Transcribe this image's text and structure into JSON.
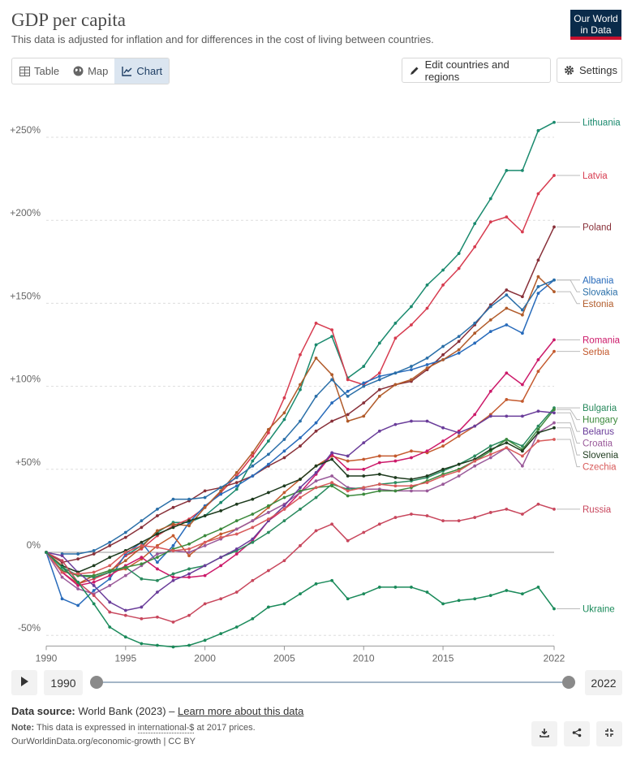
{
  "header": {
    "title": "GDP per capita",
    "subtitle": "This data is adjusted for inflation and for differences in the cost of living between countries.",
    "logo_line1": "Our World",
    "logo_line2": "in Data"
  },
  "tabs": [
    {
      "label": "Table",
      "icon": "table-icon"
    },
    {
      "label": "Map",
      "icon": "globe-icon"
    },
    {
      "label": "Chart",
      "icon": "line-chart-icon",
      "active": true
    }
  ],
  "toolbar": {
    "edit_label": "Edit countries and regions",
    "settings_label": "Settings"
  },
  "timeline": {
    "start_year": "1990",
    "end_year": "2022"
  },
  "footer": {
    "source_label": "Data source:",
    "source_text": "World Bank (2023) –",
    "source_link": "Learn more about this data",
    "note_label": "Note:",
    "note_text_1": "This data is expressed in",
    "note_link": "international-$",
    "note_text_2": "at 2017 prices.",
    "url": "OurWorldinData.org/economic-growth | CC BY"
  },
  "chart_data": {
    "type": "line",
    "ylim": [
      -55,
      278
    ],
    "xlim": [
      1990,
      2022
    ],
    "yticks": [
      {
        "value": 250,
        "label": "+250%"
      },
      {
        "value": 200,
        "label": "+200%"
      },
      {
        "value": 150,
        "label": "+150%"
      },
      {
        "value": 100,
        "label": "+100%"
      },
      {
        "value": 50,
        "label": "+50%"
      },
      {
        "value": 0,
        "label": "0%"
      },
      {
        "value": -50,
        "label": "-50%"
      }
    ],
    "xticks": [
      1990,
      1995,
      2000,
      2005,
      2010,
      2015,
      2022
    ],
    "grid": true,
    "series": [
      {
        "name": "Lithuania",
        "color": "#1a8a6e",
        "x": [
          1995,
          1996,
          1997,
          1998,
          1999,
          2000,
          2001,
          2002,
          2003,
          2004,
          2005,
          2006,
          2007,
          2008,
          2009,
          2010,
          2011,
          2012,
          2013,
          2014,
          2015,
          2016,
          2017,
          2018,
          2019,
          2020,
          2021,
          2022
        ],
        "y": [
          -2,
          4,
          12,
          18,
          18,
          22,
          30,
          38,
          55,
          67,
          80,
          98,
          125,
          130,
          105,
          112,
          126,
          138,
          148,
          161,
          170,
          180,
          198,
          213,
          230,
          230,
          254,
          259
        ]
      },
      {
        "name": "Latvia",
        "color": "#d73c50",
        "x": [
          1990,
          1991,
          1992,
          1993,
          1994,
          1995,
          1996,
          1997,
          1998,
          1999,
          2000,
          2001,
          2002,
          2003,
          2004,
          2005,
          2006,
          2007,
          2008,
          2009,
          2010,
          2011,
          2012,
          2013,
          2014,
          2015,
          2016,
          2017,
          2018,
          2019,
          2020,
          2021,
          2022
        ],
        "y": [
          0,
          -12,
          -19,
          -16,
          -12,
          -2,
          2,
          10,
          16,
          20,
          27,
          36,
          46,
          58,
          72,
          93,
          119,
          138,
          134,
          104,
          101,
          108,
          129,
          137,
          147,
          161,
          171,
          184,
          199,
          202,
          193,
          216,
          227
        ]
      },
      {
        "name": "Poland",
        "color": "#883039",
        "x": [
          1990,
          1991,
          1992,
          1993,
          1994,
          1995,
          1996,
          1997,
          1998,
          1999,
          2000,
          2001,
          2002,
          2003,
          2004,
          2005,
          2006,
          2007,
          2008,
          2009,
          2010,
          2011,
          2012,
          2013,
          2014,
          2015,
          2016,
          2017,
          2018,
          2019,
          2020,
          2021,
          2022
        ],
        "y": [
          0,
          -6,
          -4,
          -1,
          4,
          9,
          15,
          22,
          27,
          31,
          37,
          39,
          42,
          46,
          52,
          57,
          64,
          73,
          79,
          83,
          90,
          98,
          101,
          103,
          110,
          119,
          127,
          137,
          149,
          158,
          154,
          176,
          196
        ]
      },
      {
        "name": "Albania",
        "color": "#286bbb",
        "x": [
          1990,
          1991,
          1992,
          1993,
          1994,
          1995,
          1996,
          1997,
          1998,
          1999,
          2000,
          2001,
          2002,
          2003,
          2004,
          2005,
          2006,
          2007,
          2008,
          2009,
          2010,
          2011,
          2012,
          2013,
          2014,
          2015,
          2016,
          2017,
          2018,
          2019,
          2020,
          2021,
          2022
        ],
        "y": [
          0,
          -28,
          -32,
          -23,
          -16,
          -1,
          6,
          -6,
          4,
          18,
          28,
          35,
          40,
          46,
          53,
          61,
          69,
          78,
          90,
          97,
          102,
          106,
          108,
          110,
          113,
          116,
          120,
          126,
          133,
          137,
          132,
          156,
          164
        ]
      },
      {
        "name": "Estonia",
        "color": "#b15b2a",
        "x": [
          1990,
          1991,
          1992,
          1993,
          1994,
          1995,
          1996,
          1997,
          1998,
          1999,
          2000,
          2001,
          2002,
          2003,
          2004,
          2005,
          2006,
          2007,
          2008,
          2009,
          2010,
          2011,
          2012,
          2013,
          2014,
          2015,
          2016,
          2017,
          2018,
          2019,
          2020,
          2021,
          2022
        ],
        "y": [
          0,
          -8,
          -19,
          -14,
          -11,
          -5,
          3,
          13,
          17,
          16,
          27,
          37,
          48,
          60,
          74,
          84,
          101,
          117,
          107,
          79,
          82,
          94,
          101,
          104,
          111,
          116,
          122,
          132,
          140,
          147,
          143,
          166,
          157
        ]
      },
      {
        "name": "Slovakia",
        "color": "#2a6fa8",
        "x": [
          1991,
          1992,
          1993,
          1994,
          1995,
          1996,
          1997,
          1998,
          1999,
          2000,
          2001,
          2002,
          2003,
          2004,
          2005,
          2006,
          2007,
          2008,
          2009,
          2010,
          2011,
          2012,
          2013,
          2014,
          2015,
          2016,
          2017,
          2018,
          2019,
          2020,
          2021,
          2022
        ],
        "y": [
          -1,
          -1,
          1,
          6,
          12,
          19,
          26,
          32,
          32,
          33,
          39,
          45,
          52,
          59,
          68,
          79,
          94,
          104,
          94,
          100,
          104,
          108,
          112,
          117,
          124,
          130,
          138,
          148,
          155,
          146,
          160,
          164
        ]
      },
      {
        "name": "Serbia",
        "color": "#c45a2e",
        "x": [
          1994,
          1995,
          1996,
          1997,
          1998,
          1999,
          2000,
          2001,
          2002,
          2003,
          2004,
          2005,
          2006,
          2007,
          2008,
          2009,
          2010,
          2011,
          2012,
          2013,
          2014,
          2015,
          2016,
          2017,
          2018,
          2019,
          2020,
          2021,
          2022
        ],
        "y": [
          -12,
          -10,
          -4,
          4,
          10,
          -2,
          6,
          11,
          14,
          19,
          27,
          36,
          44,
          52,
          58,
          55,
          56,
          58,
          58,
          61,
          60,
          64,
          70,
          76,
          83,
          92,
          91,
          109,
          121
        ]
      },
      {
        "name": "Romania",
        "color": "#cc1a6a",
        "x": [
          1990,
          1991,
          1992,
          1993,
          1994,
          1995,
          1996,
          1997,
          1998,
          1999,
          2000,
          2001,
          2002,
          2003,
          2004,
          2005,
          2006,
          2007,
          2008,
          2009,
          2010,
          2011,
          2012,
          2013,
          2014,
          2015,
          2016,
          2017,
          2018,
          2019,
          2020,
          2021,
          2022
        ],
        "y": [
          0,
          -12,
          -20,
          -18,
          -14,
          -8,
          -3,
          -10,
          -15,
          -15,
          -14,
          -8,
          -1,
          7,
          19,
          26,
          36,
          47,
          59,
          50,
          50,
          54,
          55,
          57,
          61,
          67,
          73,
          83,
          97,
          108,
          101,
          116,
          128
        ]
      },
      {
        "name": "Croatia",
        "color": "#9a5a9a",
        "x": [
          1990,
          1991,
          1992,
          1993,
          1994,
          1995,
          1996,
          1997,
          1998,
          1999,
          2000,
          2001,
          2002,
          2003,
          2004,
          2005,
          2006,
          2007,
          2008,
          2009,
          2010,
          2011,
          2012,
          2013,
          2014,
          2015,
          2016,
          2017,
          2018,
          2019,
          2020,
          2021,
          2022
        ],
        "y": [
          0,
          -15,
          -22,
          -25,
          -20,
          -14,
          -8,
          -1,
          1,
          0,
          4,
          8,
          14,
          19,
          24,
          29,
          36,
          43,
          46,
          39,
          38,
          38,
          37,
          37,
          37,
          41,
          46,
          52,
          57,
          63,
          52,
          72,
          78
        ]
      },
      {
        "name": "Bulgaria",
        "color": "#2a8a5e",
        "x": [
          1990,
          1991,
          1992,
          1993,
          1994,
          1995,
          1996,
          1997,
          1998,
          1999,
          2000,
          2001,
          2002,
          2003,
          2004,
          2005,
          2006,
          2007,
          2008,
          2009,
          2010,
          2011,
          2012,
          2013,
          2014,
          2015,
          2016,
          2017,
          2018,
          2019,
          2020,
          2021,
          2022
        ],
        "y": [
          0,
          -9,
          -14,
          -15,
          -12,
          -9,
          -16,
          -17,
          -13,
          -10,
          -8,
          -3,
          1,
          6,
          12,
          19,
          26,
          33,
          41,
          38,
          39,
          41,
          42,
          43,
          45,
          49,
          53,
          58,
          64,
          68,
          64,
          76,
          87
        ]
      },
      {
        "name": "Hungary",
        "color": "#3d8a3d",
        "x": [
          1990,
          1991,
          1992,
          1993,
          1994,
          1995,
          1996,
          1997,
          1998,
          1999,
          2000,
          2001,
          2002,
          2003,
          2004,
          2005,
          2006,
          2007,
          2008,
          2009,
          2010,
          2011,
          2012,
          2013,
          2014,
          2015,
          2016,
          2017,
          2018,
          2019,
          2020,
          2021,
          2022
        ],
        "y": [
          0,
          -11,
          -14,
          -14,
          -11,
          -9,
          -7,
          -3,
          2,
          5,
          10,
          14,
          19,
          23,
          28,
          33,
          37,
          39,
          40,
          34,
          35,
          37,
          37,
          39,
          43,
          47,
          50,
          55,
          61,
          68,
          62,
          74,
          86
        ]
      },
      {
        "name": "Belarus",
        "color": "#6a3d9a",
        "x": [
          1990,
          1991,
          1992,
          1993,
          1994,
          1995,
          1996,
          1997,
          1998,
          1999,
          2000,
          2001,
          2002,
          2003,
          2004,
          2005,
          2006,
          2007,
          2008,
          2009,
          2010,
          2011,
          2012,
          2013,
          2014,
          2015,
          2016,
          2017,
          2018,
          2019,
          2020,
          2021,
          2022
        ],
        "y": [
          0,
          -2,
          -12,
          -20,
          -30,
          -35,
          -33,
          -24,
          -17,
          -13,
          -8,
          -3,
          2,
          8,
          19,
          28,
          39,
          48,
          60,
          58,
          66,
          73,
          77,
          79,
          79,
          75,
          72,
          76,
          82,
          82,
          82,
          85,
          84
        ]
      },
      {
        "name": "Slovenia",
        "color": "#1e3b1e",
        "x": [
          1991,
          1992,
          1993,
          1994,
          1995,
          1996,
          1997,
          1998,
          1999,
          2000,
          2001,
          2002,
          2003,
          2004,
          2005,
          2006,
          2007,
          2008,
          2009,
          2010,
          2011,
          2012,
          2013,
          2014,
          2015,
          2016,
          2017,
          2018,
          2019,
          2020,
          2021,
          2022
        ],
        "y": [
          -8,
          -12,
          -8,
          -3,
          1,
          6,
          11,
          15,
          19,
          22,
          25,
          29,
          32,
          36,
          40,
          44,
          52,
          56,
          46,
          46,
          47,
          45,
          44,
          46,
          50,
          53,
          56,
          62,
          66,
          61,
          72,
          75
        ]
      },
      {
        "name": "Czechia",
        "color": "#d85a5a",
        "x": [
          1990,
          1991,
          1992,
          1993,
          1994,
          1995,
          1996,
          1997,
          1998,
          1999,
          2000,
          2001,
          2002,
          2003,
          2004,
          2005,
          2006,
          2007,
          2008,
          2009,
          2010,
          2011,
          2012,
          2013,
          2014,
          2015,
          2016,
          2017,
          2018,
          2019,
          2020,
          2021,
          2022
        ],
        "y": [
          0,
          -12,
          -13,
          -12,
          -8,
          0,
          4,
          3,
          1,
          2,
          6,
          9,
          11,
          15,
          20,
          26,
          33,
          39,
          42,
          37,
          39,
          41,
          40,
          40,
          42,
          46,
          49,
          55,
          59,
          63,
          58,
          67,
          68
        ]
      },
      {
        "name": "Russia",
        "color": "#c8475d",
        "x": [
          1990,
          1991,
          1992,
          1993,
          1994,
          1995,
          1996,
          1997,
          1998,
          1999,
          2000,
          2001,
          2002,
          2003,
          2004,
          2005,
          2006,
          2007,
          2008,
          2009,
          2010,
          2011,
          2012,
          2013,
          2014,
          2015,
          2016,
          2017,
          2018,
          2019,
          2020,
          2021,
          2022
        ],
        "y": [
          0,
          -5,
          -18,
          -26,
          -36,
          -38,
          -40,
          -39,
          -42,
          -38,
          -31,
          -28,
          -24,
          -17,
          -11,
          -5,
          4,
          13,
          17,
          7,
          12,
          17,
          21,
          23,
          22,
          19,
          19,
          21,
          24,
          26,
          23,
          29,
          26
        ]
      },
      {
        "name": "Ukraine",
        "color": "#1a8a5a",
        "x": [
          1990,
          1991,
          1992,
          1993,
          1994,
          1995,
          1996,
          1997,
          1998,
          1999,
          2000,
          2001,
          2002,
          2003,
          2004,
          2005,
          2006,
          2007,
          2008,
          2009,
          2010,
          2011,
          2012,
          2013,
          2014,
          2015,
          2016,
          2017,
          2018,
          2019,
          2020,
          2021,
          2022
        ],
        "y": [
          0,
          -9,
          -18,
          -31,
          -45,
          -51,
          -55,
          -56,
          -57,
          -56,
          -53,
          -49,
          -45,
          -40,
          -33,
          -31,
          -25,
          -19,
          -17,
          -28,
          -25,
          -21,
          -21,
          -21,
          -24,
          -31,
          -29,
          -28,
          -26,
          -23,
          -25,
          -21,
          -34
        ]
      }
    ]
  }
}
